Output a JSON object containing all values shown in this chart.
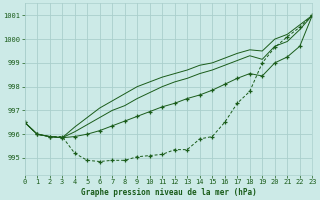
{
  "title": "Graphe pression niveau de la mer (hPa)",
  "bg_color": "#cceae7",
  "grid_color": "#aacfcc",
  "line_color": "#1a5c1a",
  "xlim": [
    0,
    23
  ],
  "ylim": [
    994.3,
    1001.5
  ],
  "yticks": [
    995,
    996,
    997,
    998,
    999,
    1000,
    1001
  ],
  "xticks": [
    0,
    1,
    2,
    3,
    4,
    5,
    6,
    7,
    8,
    9,
    10,
    11,
    12,
    13,
    14,
    15,
    16,
    17,
    18,
    19,
    20,
    21,
    22,
    23
  ],
  "y_dotted_markers": [
    996.5,
    996.0,
    995.9,
    995.9,
    995.2,
    994.9,
    994.85,
    994.9,
    994.9,
    995.05,
    995.1,
    995.15,
    995.35,
    995.35,
    995.8,
    995.9,
    996.5,
    997.3,
    997.8,
    999.0,
    999.65,
    1000.1,
    1000.5,
    1001.0
  ],
  "y_line_top": [
    996.5,
    996.0,
    995.9,
    995.85,
    996.3,
    996.7,
    997.1,
    997.4,
    997.7,
    998.0,
    998.2,
    998.4,
    998.55,
    998.7,
    998.9,
    999.0,
    999.2,
    999.4,
    999.55,
    999.5,
    1000.0,
    1000.2,
    1000.6,
    1001.0
  ],
  "y_line_mid": [
    996.5,
    996.0,
    995.9,
    995.85,
    996.1,
    996.4,
    996.7,
    997.0,
    997.2,
    997.5,
    997.75,
    998.0,
    998.2,
    998.35,
    998.55,
    998.7,
    998.9,
    999.1,
    999.3,
    999.15,
    999.7,
    999.9,
    1000.4,
    1001.0
  ],
  "y_line_bot_markers": [
    996.5,
    996.0,
    995.9,
    995.85,
    995.9,
    996.0,
    996.15,
    996.35,
    996.55,
    996.75,
    996.95,
    997.15,
    997.3,
    997.5,
    997.65,
    997.85,
    998.1,
    998.35,
    998.55,
    998.45,
    999.0,
    999.25,
    999.7,
    1001.0
  ]
}
